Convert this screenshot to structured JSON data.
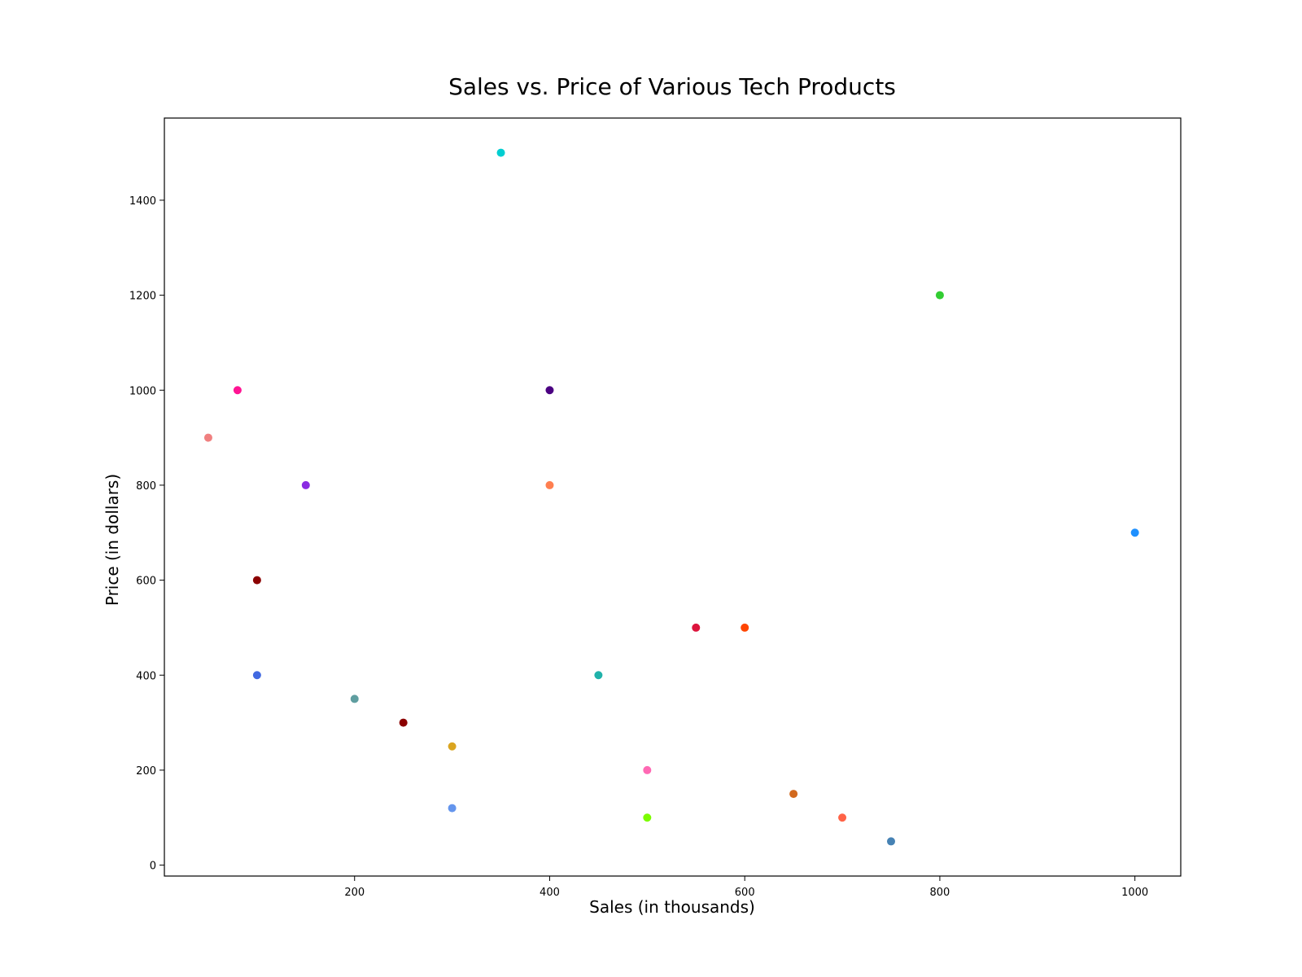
{
  "chart_data": {
    "type": "scatter",
    "title": "Sales vs. Price of Various Tech Products",
    "xlabel": "Sales (in thousands)",
    "ylabel": "Price (in dollars)",
    "xlim": [
      5,
      1047
    ],
    "ylim": [
      -23,
      1573
    ],
    "xticks": [
      200,
      400,
      600,
      800,
      1000
    ],
    "yticks": [
      0,
      200,
      400,
      600,
      800,
      1000,
      1200,
      1400
    ],
    "grid": false,
    "points": [
      {
        "x": 800,
        "y": 1200,
        "color": "#32cd32"
      },
      {
        "x": 1000,
        "y": 700,
        "color": "#1e90ff"
      },
      {
        "x": 350,
        "y": 1500,
        "color": "#00ced1"
      },
      {
        "x": 400,
        "y": 1000,
        "color": "#4b0082"
      },
      {
        "x": 80,
        "y": 1000,
        "color": "#ff1493"
      },
      {
        "x": 50,
        "y": 900,
        "color": "#f08080"
      },
      {
        "x": 150,
        "y": 800,
        "color": "#8a2be2"
      },
      {
        "x": 400,
        "y": 800,
        "color": "#ff7f50"
      },
      {
        "x": 100,
        "y": 600,
        "color": "#8b0000"
      },
      {
        "x": 550,
        "y": 500,
        "color": "#dc143c"
      },
      {
        "x": 600,
        "y": 500,
        "color": "#ff4500"
      },
      {
        "x": 100,
        "y": 400,
        "color": "#4169e1"
      },
      {
        "x": 450,
        "y": 400,
        "color": "#20b2aa"
      },
      {
        "x": 200,
        "y": 350,
        "color": "#5f9ea0"
      },
      {
        "x": 250,
        "y": 300,
        "color": "#8b0000"
      },
      {
        "x": 300,
        "y": 250,
        "color": "#daa520"
      },
      {
        "x": 500,
        "y": 200,
        "color": "#ff69b4"
      },
      {
        "x": 650,
        "y": 150,
        "color": "#d2691e"
      },
      {
        "x": 300,
        "y": 120,
        "color": "#6495ed"
      },
      {
        "x": 500,
        "y": 100,
        "color": "#7cfc00"
      },
      {
        "x": 700,
        "y": 100,
        "color": "#ff6347"
      },
      {
        "x": 750,
        "y": 50,
        "color": "#4682b4"
      }
    ]
  }
}
